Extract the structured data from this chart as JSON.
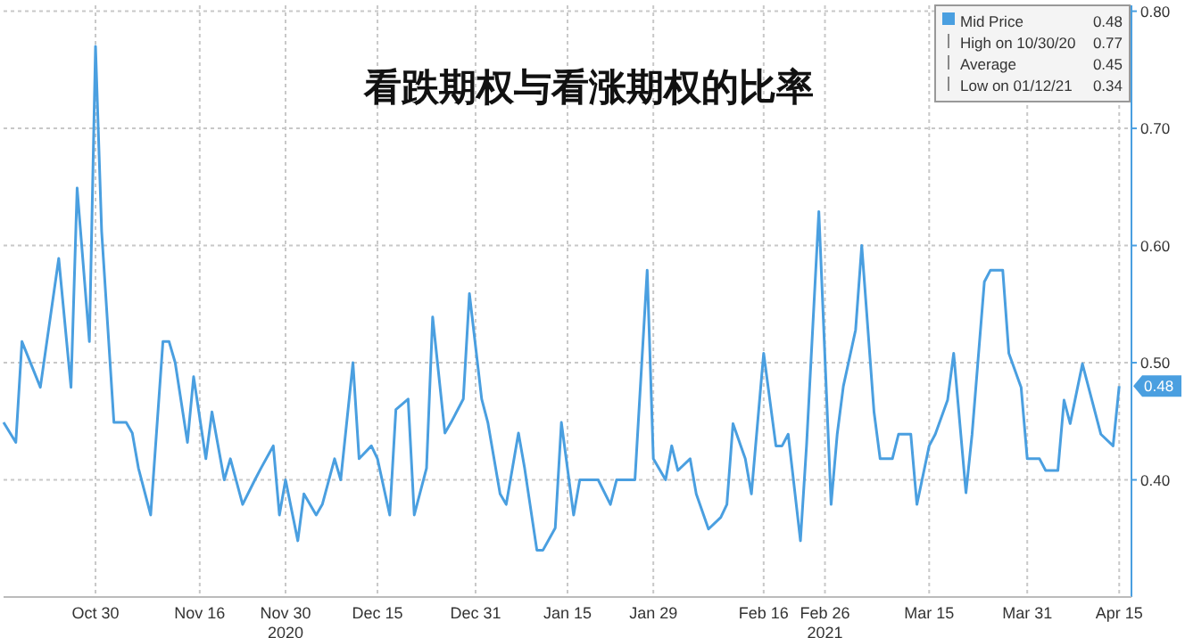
{
  "chart_data": {
    "type": "line",
    "title": "看跌期权与看涨期权的比率",
    "x": [
      "2020-10-15",
      "2020-10-17",
      "2020-10-18",
      "2020-10-21",
      "2020-10-24",
      "2020-10-26",
      "2020-10-27",
      "2020-10-29",
      "2020-10-30",
      "2020-10-31",
      "2020-11-02",
      "2020-11-04",
      "2020-11-05",
      "2020-11-06",
      "2020-11-08",
      "2020-11-10",
      "2020-11-11",
      "2020-11-12",
      "2020-11-14",
      "2020-11-15",
      "2020-11-17",
      "2020-11-18",
      "2020-11-20",
      "2020-11-21",
      "2020-11-23",
      "2020-11-25",
      "2020-11-26",
      "2020-11-28",
      "2020-11-29",
      "2020-11-30",
      "2020-12-02",
      "2020-12-03",
      "2020-12-05",
      "2020-12-06",
      "2020-12-08",
      "2020-12-09",
      "2020-12-11",
      "2020-12-12",
      "2020-12-14",
      "2020-12-15",
      "2020-12-17",
      "2020-12-18",
      "2020-12-20",
      "2020-12-21",
      "2020-12-23",
      "2020-12-24",
      "2020-12-26",
      "2020-12-27",
      "2020-12-29",
      "2020-12-30",
      "2021-01-01",
      "2021-01-02",
      "2021-01-04",
      "2021-01-05",
      "2021-01-07",
      "2021-01-08",
      "2021-01-10",
      "2021-01-11",
      "2021-01-13",
      "2021-01-14",
      "2021-01-16",
      "2021-01-17",
      "2021-01-19",
      "2021-01-20",
      "2021-01-22",
      "2021-01-23",
      "2021-01-24",
      "2021-01-26",
      "2021-01-28",
      "2021-01-29",
      "2021-01-31",
      "2021-02-01",
      "2021-02-02",
      "2021-02-04",
      "2021-02-05",
      "2021-02-07",
      "2021-02-09",
      "2021-02-10",
      "2021-02-11",
      "2021-02-13",
      "2021-02-14",
      "2021-02-16",
      "2021-02-18",
      "2021-02-19",
      "2021-02-20",
      "2021-02-22",
      "2021-02-23",
      "2021-02-25",
      "2021-02-27",
      "2021-02-28",
      "2021-03-01",
      "2021-03-03",
      "2021-03-04",
      "2021-03-06",
      "2021-03-07",
      "2021-03-09",
      "2021-03-10",
      "2021-03-12",
      "2021-03-13",
      "2021-03-15",
      "2021-03-16",
      "2021-03-18",
      "2021-03-19",
      "2021-03-21",
      "2021-03-22",
      "2021-03-24",
      "2021-03-25",
      "2021-03-27",
      "2021-03-28",
      "2021-03-30",
      "2021-03-31",
      "2021-04-02",
      "2021-04-03",
      "2021-04-05",
      "2021-04-06",
      "2021-04-07",
      "2021-04-09",
      "2021-04-10",
      "2021-04-12",
      "2021-04-14",
      "2021-04-15"
    ],
    "series": [
      {
        "name": "Mid Price",
        "color": "#4a9fe0",
        "values": [
          0.449,
          0.432,
          0.518,
          0.479,
          0.589,
          0.479,
          0.649,
          0.518,
          0.77,
          0.612,
          0.449,
          0.449,
          0.44,
          0.41,
          0.37,
          0.518,
          0.518,
          0.5,
          0.432,
          0.488,
          0.418,
          0.458,
          0.4,
          0.418,
          0.379,
          0.4,
          0.41,
          0.429,
          0.37,
          0.4,
          0.348,
          0.388,
          0.37,
          0.379,
          0.418,
          0.4,
          0.5,
          0.418,
          0.429,
          0.418,
          0.37,
          0.46,
          0.469,
          0.37,
          0.41,
          0.539,
          0.44,
          0.449,
          0.469,
          0.559,
          0.469,
          0.449,
          0.388,
          0.379,
          0.44,
          0.41,
          0.34,
          0.34,
          0.359,
          0.449,
          0.37,
          0.4,
          0.4,
          0.4,
          0.379,
          0.4,
          0.4,
          0.4,
          0.579,
          0.418,
          0.4,
          0.429,
          0.408,
          0.418,
          0.388,
          0.358,
          0.368,
          0.379,
          0.448,
          0.418,
          0.388,
          0.508,
          0.429,
          0.429,
          0.439,
          0.348,
          0.43,
          0.629,
          0.379,
          0.439,
          0.48,
          0.528,
          0.6,
          0.458,
          0.418,
          0.418,
          0.439,
          0.439,
          0.379,
          0.429,
          0.439,
          0.468,
          0.508,
          0.389,
          0.439,
          0.569,
          0.579,
          0.579,
          0.508,
          0.479,
          0.418,
          0.418,
          0.408,
          0.408,
          0.468,
          0.448,
          0.499,
          0.479,
          0.439,
          0.429,
          0.48
        ],
        "value_labels": [
          null,
          null,
          null,
          null,
          null,
          null,
          null,
          null,
          null,
          null,
          null,
          null,
          null,
          null,
          null,
          null,
          null,
          null,
          null,
          null,
          null,
          null,
          null,
          null,
          null,
          null,
          null,
          null,
          null,
          null,
          null,
          null,
          null,
          null,
          null,
          null,
          null,
          null,
          null,
          null,
          null,
          null,
          null,
          null,
          null,
          null,
          null,
          null,
          null,
          null,
          null,
          null,
          null,
          null,
          null,
          null,
          null,
          null,
          null,
          null,
          null,
          null,
          null,
          null,
          null,
          null,
          null,
          null,
          null,
          null,
          null,
          null,
          null,
          null,
          null,
          null,
          null,
          null,
          null,
          null,
          null,
          null,
          null,
          null,
          null,
          null,
          null,
          null,
          null,
          null,
          null,
          null,
          null,
          null,
          null,
          null,
          null,
          null,
          null,
          null,
          null,
          null,
          null,
          null,
          null,
          null,
          null,
          null,
          null,
          null,
          null,
          null,
          null,
          null,
          null,
          null,
          null,
          null,
          null,
          null,
          "0.48"
        ]
      }
    ],
    "annotations": [
      "High on 10/30/20 0.77",
      "Average 0.45",
      "Low on 01/12/21 0.34"
    ],
    "xlim": [
      "2020-10-15",
      "2021-04-17"
    ],
    "xticks": [
      {
        "value": "2020-10-30",
        "label": "Oct 30"
      },
      {
        "value": "2020-11-16",
        "label": "Nov 16"
      },
      {
        "value": "2020-11-30",
        "label": "Nov 30\n2020"
      },
      {
        "value": "2020-12-15",
        "label": "Dec 15"
      },
      {
        "value": "2020-12-31",
        "label": "Dec 31"
      },
      {
        "value": "2021-01-15",
        "label": "Jan 15"
      },
      {
        "value": "2021-01-29",
        "label": "Jan 29"
      },
      {
        "value": "2021-02-16",
        "label": "Feb 16"
      },
      {
        "value": "2021-02-26",
        "label": "Feb 26\n2021"
      },
      {
        "value": "2021-03-15",
        "label": "Mar 15"
      },
      {
        "value": "2021-03-31",
        "label": "Mar 31"
      },
      {
        "value": "2021-04-15",
        "label": "Apr 15"
      }
    ],
    "ylim": [
      0.3,
      0.805
    ],
    "yticks": [
      {
        "value": 0.4,
        "label": "0.40"
      },
      {
        "value": 0.5,
        "label": "0.50"
      },
      {
        "value": 0.6,
        "label": "0.60"
      },
      {
        "value": 0.7,
        "label": "0.70"
      },
      {
        "value": 0.8,
        "label": "0.80"
      }
    ],
    "grid": true,
    "legend": "top right"
  }
}
